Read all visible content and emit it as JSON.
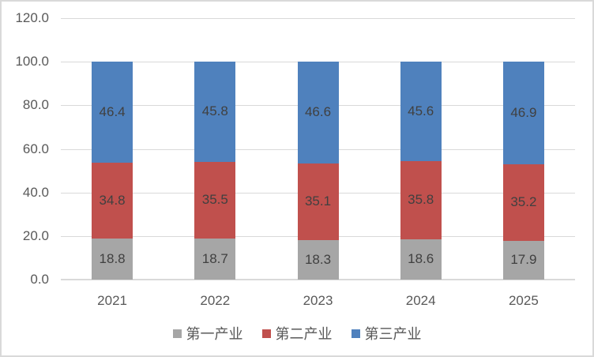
{
  "chart_data": {
    "type": "bar",
    "stacked": true,
    "title": "",
    "categories": [
      "2021",
      "2022",
      "2023",
      "2024",
      "2025"
    ],
    "series": [
      {
        "name": "第一产业",
        "color": "#a6a6a6",
        "values": [
          18.8,
          18.7,
          18.3,
          18.6,
          17.9
        ]
      },
      {
        "name": "第二产业",
        "color": "#c0504d",
        "values": [
          34.8,
          35.5,
          35.1,
          35.8,
          35.2
        ]
      },
      {
        "name": "第三产业",
        "color": "#4f81bd",
        "values": [
          46.4,
          45.8,
          46.6,
          45.6,
          46.9
        ]
      }
    ],
    "y_ticks": [
      0,
      20,
      40,
      60,
      80,
      100,
      120
    ],
    "y_tick_labels": [
      "0.0",
      "20.0",
      "40.0",
      "60.0",
      "80.0",
      "100.0",
      "120.0"
    ],
    "ylim": [
      0,
      120
    ],
    "grid": true,
    "legend_position": "bottom",
    "value_label_decimals": 1,
    "colors": {
      "gridline": "#d9d9d9",
      "axis_text": "#595959",
      "value_label_text": "#404040"
    }
  }
}
